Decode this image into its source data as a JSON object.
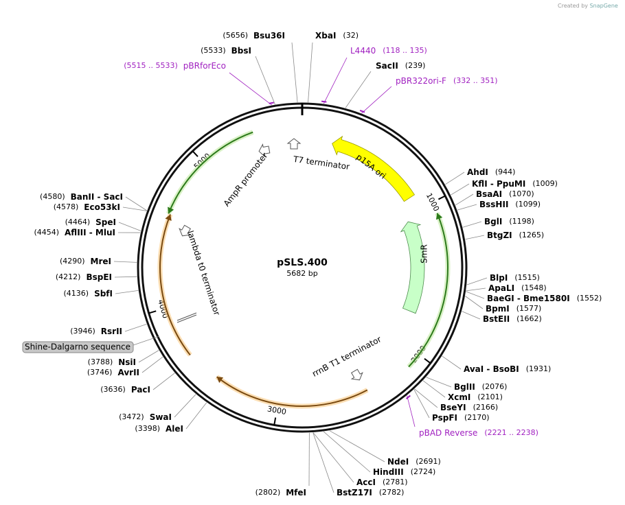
{
  "credit": "Created by",
  "brand": "SnapGene",
  "plasmid": {
    "name": "pSLS.400",
    "size": "5682 bp"
  },
  "ticks": [
    "1000",
    "2000",
    "3000",
    "4000",
    "5000"
  ],
  "sites": [
    {
      "name": "Bsu36I",
      "pos": "(5656)"
    },
    {
      "name": "XbaI",
      "pos": "(32)"
    },
    {
      "name": "BbsI",
      "pos": "(5533)"
    },
    {
      "name": "SacII",
      "pos": "(239)"
    },
    {
      "name": "AhdI",
      "pos": "(944)"
    },
    {
      "name": "KflI - PpuMI",
      "pos": "(1009)"
    },
    {
      "name": "BsaAI",
      "pos": "(1070)"
    },
    {
      "name": "BssHII",
      "pos": "(1099)"
    },
    {
      "name": "BglI",
      "pos": "(1198)"
    },
    {
      "name": "BtgZI",
      "pos": "(1265)"
    },
    {
      "name": "BlpI",
      "pos": "(1515)"
    },
    {
      "name": "ApaLI",
      "pos": "(1548)"
    },
    {
      "name": "BaeGI - Bme1580I",
      "pos": "(1552)"
    },
    {
      "name": "BpmI",
      "pos": "(1577)"
    },
    {
      "name": "BstEII",
      "pos": "(1662)"
    },
    {
      "name": "AvaI - BsoBI",
      "pos": "(1931)"
    },
    {
      "name": "BglII",
      "pos": "(2076)"
    },
    {
      "name": "XcmI",
      "pos": "(2101)"
    },
    {
      "name": "BseYI",
      "pos": "(2166)"
    },
    {
      "name": "PspFI",
      "pos": "(2170)"
    },
    {
      "name": "NdeI",
      "pos": "(2691)"
    },
    {
      "name": "HindIII",
      "pos": "(2724)"
    },
    {
      "name": "AccI",
      "pos": "(2781)"
    },
    {
      "name": "BstZ17I",
      "pos": "(2782)"
    },
    {
      "name": "MfeI",
      "pos": "(2802)"
    },
    {
      "name": "AleI",
      "pos": "(3398)"
    },
    {
      "name": "SwaI",
      "pos": "(3472)"
    },
    {
      "name": "PacI",
      "pos": "(3636)"
    },
    {
      "name": "AvrII",
      "pos": "(3746)"
    },
    {
      "name": "NsiI",
      "pos": "(3788)"
    },
    {
      "name": "RsrII",
      "pos": "(3946)"
    },
    {
      "name": "SbfI",
      "pos": "(4136)"
    },
    {
      "name": "BspEI",
      "pos": "(4212)"
    },
    {
      "name": "MreI",
      "pos": "(4290)"
    },
    {
      "name": "AflIII - MluI",
      "pos": "(4454)"
    },
    {
      "name": "SpeI",
      "pos": "(4464)"
    },
    {
      "name": "Eco53kI",
      "pos": "(4578)"
    },
    {
      "name": "BanII - SacI",
      "pos": "(4580)"
    }
  ],
  "primers": [
    {
      "name": "pBRforEco",
      "range": "(5515 .. 5533)"
    },
    {
      "name": "L4440",
      "range": "(118 .. 135)"
    },
    {
      "name": "pBR322ori-F",
      "range": "(332 .. 351)"
    },
    {
      "name": "pBAD Reverse",
      "range": "(2221 .. 2238)"
    }
  ],
  "features": [
    "T7 terminator",
    "p15A ori",
    "AmpR promoter",
    "lambda t0 terminator",
    "SmR",
    "rrnB T1 terminator",
    "Shine-Dalgarno sequence"
  ]
}
